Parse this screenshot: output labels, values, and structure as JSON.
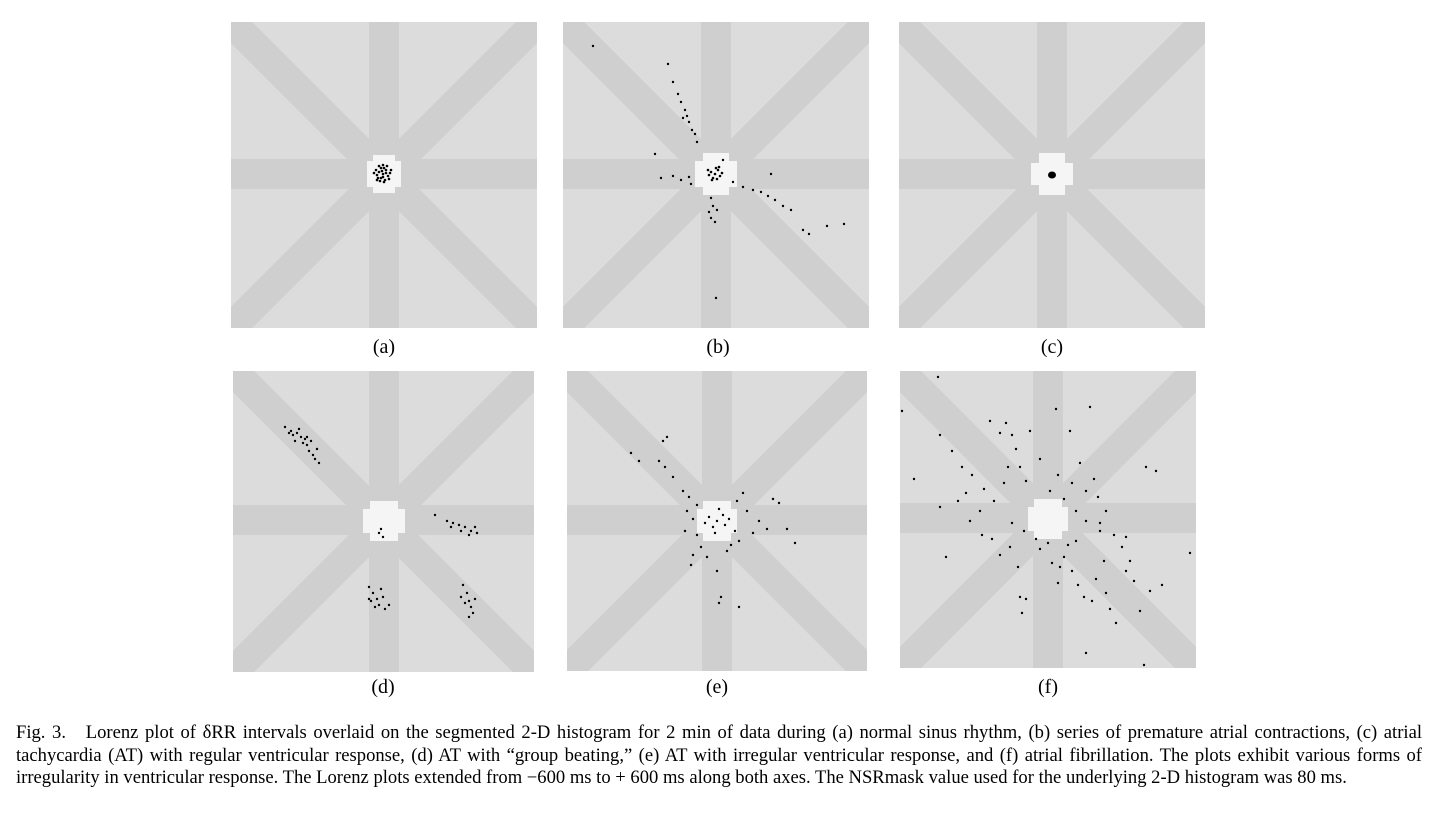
{
  "figure": {
    "panels": [
      {
        "label": "(a)",
        "pattern": "tight cluster at origin (normal sinus rhythm)"
      },
      {
        "label": "(b)",
        "pattern": "central cluster with scattered arms along diagonals (premature atrial contractions)"
      },
      {
        "label": "(c)",
        "pattern": "very tight dot at origin (AT with regular ventricular response)"
      },
      {
        "label": "(d)",
        "pattern": "separated clusters in off-center regions (group beating)"
      },
      {
        "label": "(e)",
        "pattern": "dispersed cluster around center (AT with irregular ventricular response)"
      },
      {
        "label": "(f)",
        "pattern": "widely scattered points (atrial fibrillation)"
      }
    ],
    "colors": {
      "background": "#dcdcdc",
      "band": "#cfcfcf",
      "center": "#f5f5f5",
      "points": "#000000"
    }
  },
  "caption": {
    "prefix": "Fig. 3.",
    "text": "Lorenz plot of δRR intervals overlaid on the segmented 2-D histogram for 2 min of data during (a) normal sinus rhythm, (b) series of premature atrial contractions, (c) atrial tachycardia (AT) with regular ventricular response, (d) AT with “group beating,” (e) AT with irregular ventricular response, and (f) atrial fibrillation. The plots exhibit various forms of irregularity in ventricular response. The Lorenz plots extended from −600 ms to + 600 ms along both axes. The NSRmask value used for the underlying 2-D histogram was 80 ms."
  }
}
